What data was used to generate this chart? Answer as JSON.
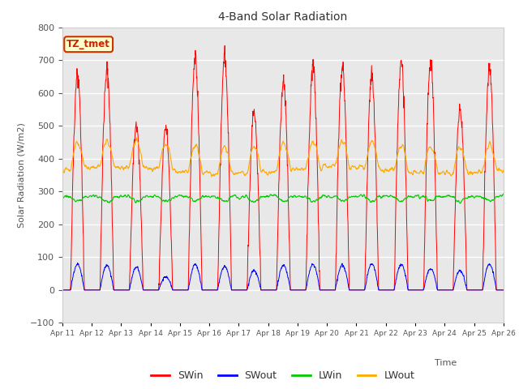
{
  "title": "4-Band Solar Radiation",
  "xlabel": "Time",
  "ylabel": "Solar Radiation (W/m2)",
  "ylim": [
    -100,
    800
  ],
  "annotation_text": "TZ_tmet",
  "annotation_bg": "#ffffcc",
  "annotation_border": "#cc3300",
  "bg_color": "#e8e8e8",
  "fig_color": "#ffffff",
  "line_colors": {
    "SWin": "#ff0000",
    "SWout": "#0000ff",
    "LWin": "#00cc00",
    "LWout": "#ffaa00"
  },
  "x_tick_labels": [
    "Apr 11",
    "Apr 12",
    "Apr 13",
    "Apr 14",
    "Apr 15",
    "Apr 16",
    "Apr 17",
    "Apr 18",
    "Apr 19",
    "Apr 20",
    "Apr 21",
    "Apr 22",
    "Apr 23",
    "Apr 24",
    "Apr 25",
    "Apr 26"
  ],
  "days": 15,
  "pts_per_day": 96,
  "SWin_peaks": [
    660,
    670,
    500,
    490,
    700,
    700,
    540,
    630,
    680,
    680,
    650,
    695,
    695,
    550,
    675
  ],
  "SWout_peaks": [
    78,
    75,
    70,
    40,
    78,
    72,
    60,
    75,
    78,
    75,
    80,
    78,
    65,
    60,
    78
  ],
  "LWin_base": 285,
  "LWout_base": 365
}
